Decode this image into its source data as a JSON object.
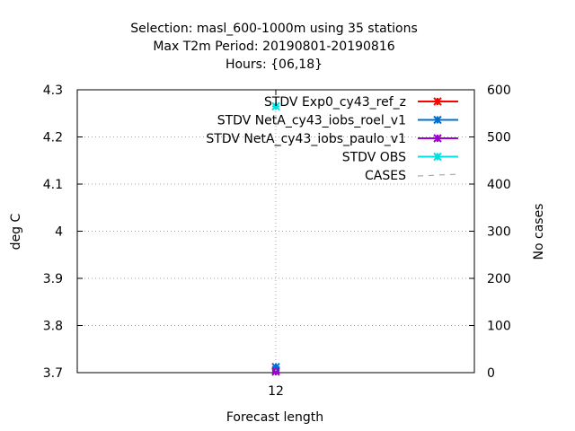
{
  "chart_data": {
    "type": "line",
    "title_lines": [
      "Selection: masl_600-1000m using    35 stations",
      "Max T2m   Period: 20190801-20190816",
      "Hours: {06,18}"
    ],
    "xlabel": "Forecast length",
    "ylabel": "deg C",
    "y2label": "No cases",
    "categories": [
      "12"
    ],
    "ylim": [
      3.7,
      4.3
    ],
    "y2lim": [
      0,
      600
    ],
    "yticks": [
      "3.7",
      "3.8",
      "3.9",
      "4",
      "4.1",
      "4.2",
      "4.3"
    ],
    "y2ticks": [
      "0",
      "100",
      "200",
      "300",
      "400",
      "500",
      "600"
    ],
    "grid": true,
    "legend_position": "top-right",
    "series": [
      {
        "name": "STDV Exp0_cy43_ref_z",
        "axis": "y",
        "color": "#ff0000",
        "values": [
          3.705
        ]
      },
      {
        "name": "STDV NetA_cy43_iobs_roel_v1",
        "axis": "y",
        "color": "#0070d0",
        "values": [
          3.712
        ]
      },
      {
        "name": "STDV NetA_cy43_iobs_paulo_v1",
        "axis": "y",
        "color": "#a000d0",
        "values": [
          3.702
        ]
      },
      {
        "name": "STDV OBS",
        "axis": "y",
        "color": "#00e0e0",
        "values": [
          4.265
        ]
      },
      {
        "name": "CASES",
        "axis": "y2",
        "color": "#999999",
        "dashed": true,
        "values": [
          5
        ]
      }
    ]
  }
}
